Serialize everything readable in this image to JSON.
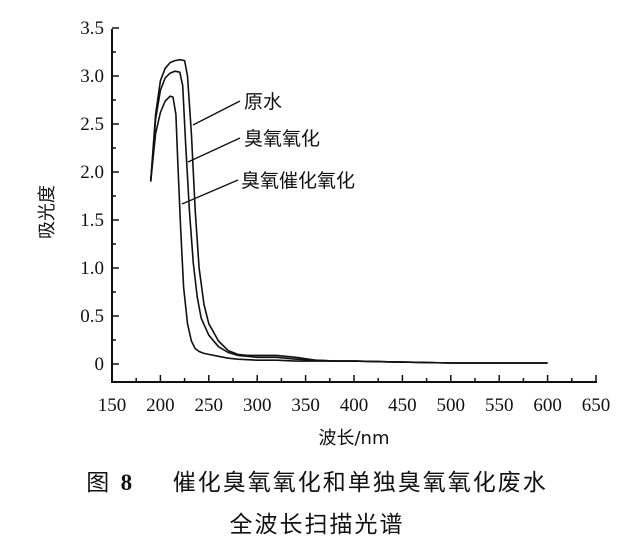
{
  "chart_data": {
    "type": "line",
    "title": "",
    "xlabel": "波长/nm",
    "ylabel": "吸光度",
    "xlim": [
      150,
      650
    ],
    "ylim": [
      -0.1,
      3.5
    ],
    "grid": false,
    "legend_position": "inline annotations with leader lines",
    "x_ticks": [
      "150",
      "200",
      "250",
      "300",
      "350",
      "400",
      "450",
      "500",
      "550",
      "600",
      "650"
    ],
    "y_ticks": [
      "0",
      "0.5",
      "1.0",
      "1.5",
      "2.0",
      "2.5",
      "3.0",
      "3.5"
    ],
    "series": [
      {
        "name": "原水",
        "x": [
          190,
          195,
          200,
          205,
          210,
          215,
          220,
          225,
          228,
          232,
          236,
          240,
          245,
          250,
          260,
          270,
          280,
          290,
          300,
          320,
          340,
          360,
          380,
          400,
          450,
          500,
          550,
          600
        ],
        "y": [
          1.9,
          2.6,
          2.95,
          3.08,
          3.14,
          3.16,
          3.17,
          3.16,
          3.0,
          2.4,
          1.6,
          1.0,
          0.62,
          0.42,
          0.24,
          0.14,
          0.1,
          0.09,
          0.09,
          0.09,
          0.07,
          0.04,
          0.03,
          0.03,
          0.02,
          0.01,
          0.01,
          0.01
        ]
      },
      {
        "name": "臭氧氧化",
        "x": [
          190,
          195,
          200,
          205,
          210,
          215,
          220,
          223,
          226,
          230,
          234,
          238,
          242,
          250,
          260,
          270,
          280,
          290,
          300,
          320,
          340,
          360,
          380,
          400,
          450,
          500,
          550,
          600
        ],
        "y": [
          1.9,
          2.55,
          2.85,
          2.98,
          3.03,
          3.05,
          3.04,
          2.9,
          2.3,
          1.6,
          1.05,
          0.7,
          0.48,
          0.3,
          0.18,
          0.12,
          0.09,
          0.08,
          0.07,
          0.07,
          0.05,
          0.04,
          0.03,
          0.03,
          0.02,
          0.01,
          0.01,
          0.01
        ]
      },
      {
        "name": "臭氧催化氧化",
        "x": [
          190,
          195,
          200,
          205,
          210,
          213,
          216,
          218,
          221,
          224,
          228,
          232,
          236,
          240,
          245,
          250,
          260,
          270,
          280,
          300,
          320,
          340,
          360,
          380,
          400,
          450,
          500,
          550,
          600
        ],
        "y": [
          1.9,
          2.4,
          2.62,
          2.74,
          2.79,
          2.78,
          2.6,
          2.1,
          1.4,
          0.8,
          0.42,
          0.24,
          0.16,
          0.13,
          0.11,
          0.1,
          0.08,
          0.06,
          0.05,
          0.04,
          0.04,
          0.03,
          0.03,
          0.03,
          0.03,
          0.02,
          0.01,
          0.01,
          0.01
        ]
      }
    ],
    "annotations": [
      {
        "text": "原水",
        "points_to_series": "原水"
      },
      {
        "text": "臭氧氧化",
        "points_to_series": "臭氧氧化"
      },
      {
        "text": "臭氧催化氧化",
        "points_to_series": "臭氧催化氧化"
      }
    ]
  },
  "caption": {
    "figure_label": "图",
    "figure_number": "8",
    "line1": "催化臭氧氧化和单独臭氧氧化废水",
    "line2": "全波长扫描光谱"
  },
  "colors": {
    "line": "#111111",
    "background": "#ffffff"
  }
}
